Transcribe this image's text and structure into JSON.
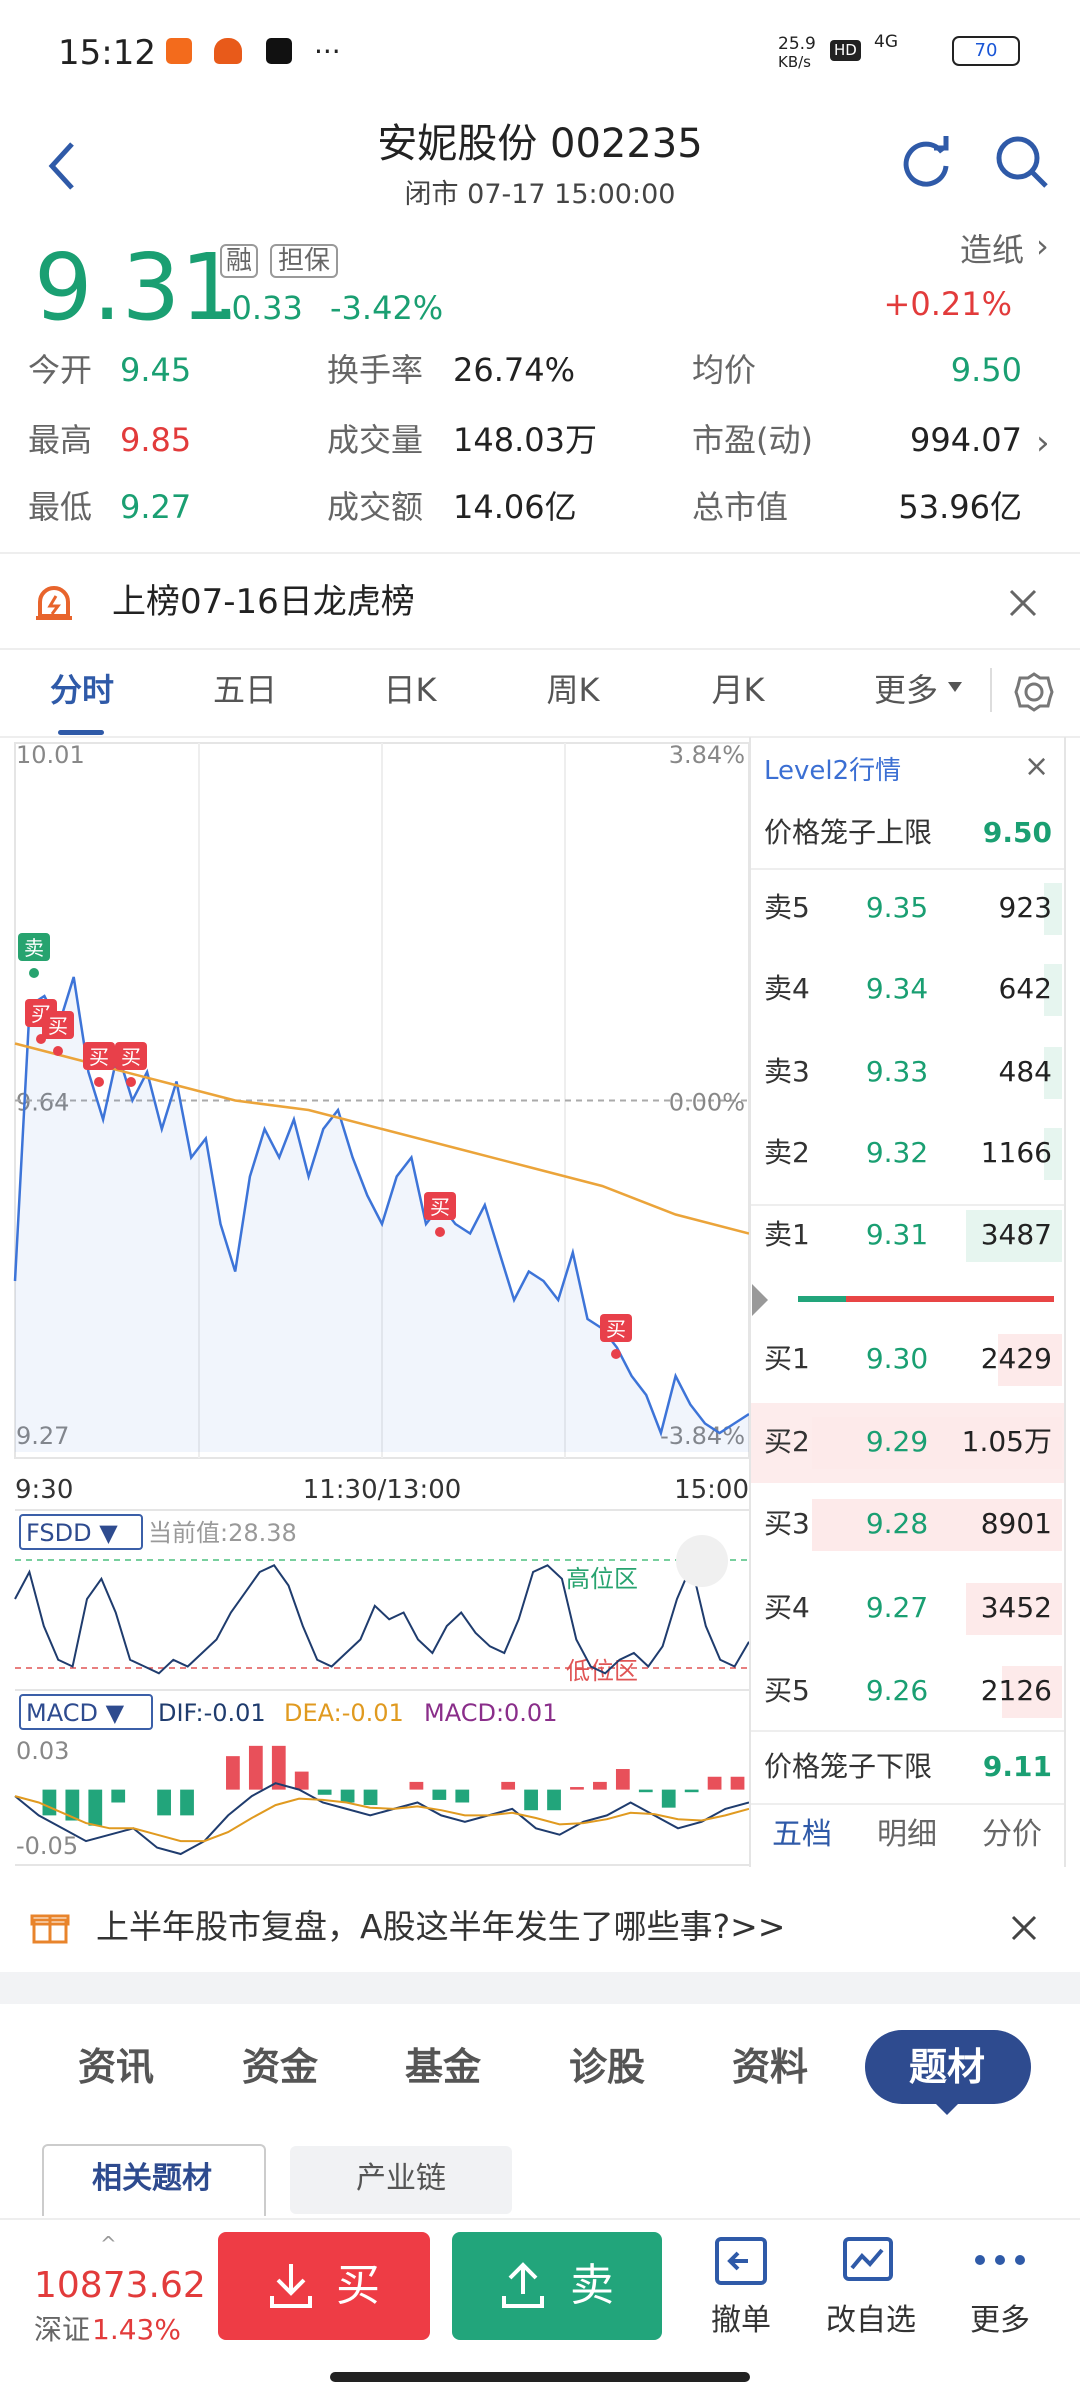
{
  "status_bar": {
    "time": "15:12",
    "speed": "25.9",
    "speed_unit": "KB/s",
    "hd": "HD",
    "net": "4G",
    "battery": "70"
  },
  "header": {
    "title": "安妮股份 002235",
    "subtitle": "闭市 07-17 15:00:00"
  },
  "quote": {
    "price": "9.31",
    "badges": [
      "融",
      "担保"
    ],
    "change": "-0.33",
    "change_pct": "-3.42%",
    "sector": "造纸",
    "sector_change": "+0.21%"
  },
  "stats": [
    [
      "今开",
      "9.45"
    ],
    [
      "换手率",
      "26.74%"
    ],
    [
      "均价",
      "9.50"
    ],
    [
      "最高",
      "9.85"
    ],
    [
      "成交量",
      "148.03万"
    ],
    [
      "市盈(动)",
      "994.07"
    ],
    [
      "最低",
      "9.27"
    ],
    [
      "成交额",
      "14.06亿"
    ],
    [
      "总市值",
      "53.96亿"
    ]
  ],
  "notice": "上榜07-16日龙虎榜",
  "chart_tabs": [
    "分时",
    "五日",
    "日K",
    "周K",
    "月K",
    "更多"
  ],
  "intraday": {
    "type": "line",
    "ylim": [
      9.27,
      10.01
    ],
    "yticks": [
      10.01,
      9.64,
      9.27
    ],
    "pct_ticks": [
      {
        "value": 10.01,
        "label": "3.84%"
      },
      {
        "value": 9.64,
        "label": "0.00%"
      },
      {
        "value": 9.27,
        "label": "-3.84%"
      }
    ],
    "x_labels": [
      "9:30",
      "11:30/13:00",
      "15:00"
    ],
    "trade_marks": [
      "卖",
      "买",
      "买",
      "买",
      "买",
      "买",
      "买"
    ],
    "price": [
      9.45,
      9.74,
      9.75,
      9.72,
      9.77,
      9.67,
      9.62,
      9.69,
      9.64,
      9.67,
      9.61,
      9.66,
      9.58,
      9.6,
      9.51,
      9.46,
      9.56,
      9.61,
      9.58,
      9.62,
      9.56,
      9.61,
      9.63,
      9.58,
      9.54,
      9.51,
      9.56,
      9.58,
      9.51,
      9.53,
      9.51,
      9.5,
      9.53,
      9.48,
      9.43,
      9.46,
      9.45,
      9.43,
      9.48,
      9.41,
      9.4,
      9.38,
      9.35,
      9.33,
      9.29,
      9.35,
      9.32,
      9.3,
      9.29,
      9.3,
      9.31
    ],
    "avg": [
      9.7,
      9.68,
      9.66,
      9.64,
      9.63,
      9.61,
      9.59,
      9.57,
      9.55,
      9.52,
      9.5
    ]
  },
  "order_book": {
    "title": "Level2行情",
    "upper": [
      "价格笼子上限",
      "9.50"
    ],
    "asks": [
      [
        "卖5",
        "9.35",
        "923"
      ],
      [
        "卖4",
        "9.34",
        "642"
      ],
      [
        "卖3",
        "9.33",
        "484"
      ],
      [
        "卖2",
        "9.32",
        "1166"
      ],
      [
        "卖1",
        "9.31",
        "3487"
      ]
    ],
    "bids": [
      [
        "买1",
        "9.30",
        "2429"
      ],
      [
        "买2",
        "9.29",
        "1.05万"
      ],
      [
        "买3",
        "9.28",
        "8901"
      ],
      [
        "买4",
        "9.27",
        "3452"
      ],
      [
        "买5",
        "9.26",
        "2126"
      ]
    ],
    "lower": [
      "价格笼子下限",
      "9.11"
    ],
    "tabs": [
      "五档",
      "明细",
      "分价"
    ]
  },
  "fsdd": {
    "name": "FSDD ▼",
    "current": "当前值:28.38",
    "high_zone": "高位区",
    "low_zone": "低位区",
    "ylim": [
      0,
      100
    ],
    "values": [
      60,
      80,
      40,
      15,
      10,
      60,
      75,
      50,
      15,
      10,
      5,
      15,
      10,
      20,
      30,
      50,
      65,
      80,
      85,
      70,
      40,
      15,
      10,
      20,
      30,
      55,
      45,
      50,
      30,
      20,
      40,
      50,
      35,
      25,
      20,
      45,
      80,
      85,
      75,
      30,
      10,
      5,
      15,
      20,
      10,
      25,
      60,
      85,
      40,
      15,
      10,
      28.38
    ]
  },
  "macd": {
    "name": "MACD ▼",
    "dif_label": "DIF:-0.01",
    "dea_label": "DEA:-0.01",
    "macd_label": "MACD:0.01",
    "ylim": [
      -0.05,
      0.03
    ],
    "yticks": [
      0.03,
      -0.05
    ],
    "dif": [
      -0.005,
      -0.02,
      -0.03,
      -0.04,
      -0.035,
      -0.03,
      -0.045,
      -0.05,
      -0.04,
      -0.02,
      -0.005,
      0.005,
      0,
      -0.01,
      -0.015,
      -0.02,
      -0.015,
      -0.01,
      -0.02,
      -0.025,
      -0.02,
      -0.015,
      -0.03,
      -0.035,
      -0.025,
      -0.02,
      -0.01,
      -0.02,
      -0.03,
      -0.025,
      -0.015,
      -0.01
    ],
    "dea": [
      -0.005,
      -0.01,
      -0.018,
      -0.026,
      -0.03,
      -0.03,
      -0.035,
      -0.04,
      -0.04,
      -0.033,
      -0.022,
      -0.012,
      -0.007,
      -0.008,
      -0.01,
      -0.014,
      -0.015,
      -0.013,
      -0.016,
      -0.02,
      -0.02,
      -0.018,
      -0.022,
      -0.027,
      -0.026,
      -0.023,
      -0.018,
      -0.019,
      -0.023,
      -0.024,
      -0.02,
      -0.015
    ],
    "hist": [
      0,
      -0.02,
      -0.024,
      -0.028,
      -0.01,
      0,
      -0.02,
      -0.02,
      0,
      0.026,
      0.034,
      0.034,
      0.014,
      -0.004,
      -0.01,
      -0.012,
      0,
      0.006,
      -0.008,
      -0.01,
      0,
      0.006,
      -0.016,
      -0.016,
      0.002,
      0.006,
      0.016,
      -0.002,
      -0.014,
      -0.002,
      0.01,
      0.01
    ]
  },
  "promo": "上半年股市复盘，A股这半年发生了哪些事?>>",
  "section_tabs": [
    "资讯",
    "资金",
    "基金",
    "诊股",
    "资料",
    "题材"
  ],
  "sub_tabs": [
    "相关题材",
    "产业链"
  ],
  "bottom_bar": {
    "index_value": "10873.62",
    "index_name": "深证",
    "index_change": "1.43%",
    "buy": "买",
    "sell": "卖",
    "actions": [
      "撤单",
      "改自选",
      "更多"
    ]
  }
}
